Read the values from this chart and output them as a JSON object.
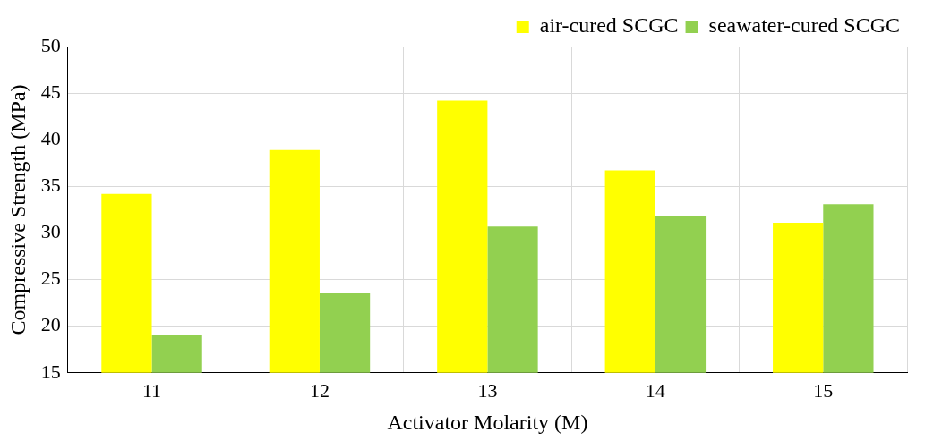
{
  "chart_data": {
    "type": "bar",
    "xlabel": "Activator Molarity (M)",
    "ylabel": "Compressive Strength (MPa)",
    "categories": [
      "11",
      "12",
      "13",
      "14",
      "15"
    ],
    "series": [
      {
        "name": "air-cured SCGC",
        "color": "#ffff00",
        "values": [
          34.2,
          38.9,
          44.2,
          36.7,
          31.1
        ]
      },
      {
        "name": "seawater-cured SCGC",
        "color": "#92d050",
        "values": [
          19.0,
          23.6,
          30.7,
          31.8,
          33.1
        ]
      }
    ],
    "ylim": [
      15,
      50
    ],
    "yticks": [
      15,
      20,
      25,
      30,
      35,
      40,
      45,
      50
    ],
    "grid": true,
    "legend": "top right"
  }
}
